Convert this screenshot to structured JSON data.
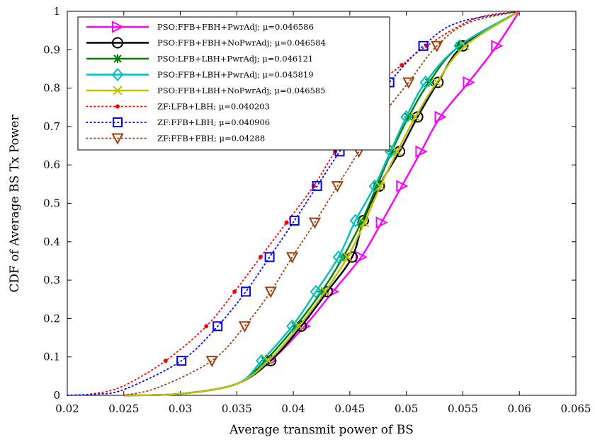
{
  "chart_data": {
    "type": "line",
    "xlabel": "Average transmit power of BS",
    "ylabel": "CDF of Average BS Tx Power",
    "xlim": [
      0.02,
      0.065
    ],
    "ylim": [
      0,
      1
    ],
    "xticks": [
      "0.02",
      "0.025",
      "0.03",
      "0.035",
      "0.04",
      "0.045",
      "0.05",
      "0.055",
      "0.06",
      "0.065"
    ],
    "yticks": [
      "0",
      "0.1",
      "0.2",
      "0.3",
      "0.4",
      "0.5",
      "0.6",
      "0.7",
      "0.8",
      "0.9",
      "1"
    ],
    "xtick_values": [
      0.02,
      0.025,
      0.03,
      0.035,
      0.04,
      0.045,
      0.05,
      0.055,
      0.06,
      0.065
    ],
    "ytick_values": [
      0,
      0.1,
      0.2,
      0.3,
      0.4,
      0.5,
      0.6,
      0.7,
      0.8,
      0.9,
      1
    ],
    "grid": false,
    "legend_position": "top-left",
    "series": [
      {
        "name": "PSO:FFB+FBH+PwrAdj; μ=0.046586",
        "color": "#ff00ff",
        "line": "solid",
        "marker": "triangle-right",
        "x": [
          0.025,
          0.03,
          0.035,
          0.038,
          0.041,
          0.0435,
          0.046,
          0.0478,
          0.0496,
          0.0513,
          0.053,
          0.0555,
          0.058,
          0.06
        ],
        "y": [
          0,
          0.004,
          0.03,
          0.09,
          0.18,
          0.27,
          0.36,
          0.45,
          0.545,
          0.635,
          0.725,
          0.815,
          0.91,
          1
        ]
      },
      {
        "name": "PSO:FFB+FBH+NoPwrAdj; μ=0.046584",
        "color": "#000000",
        "line": "solid",
        "marker": "circle",
        "x": [
          0.025,
          0.03,
          0.035,
          0.038,
          0.0407,
          0.043,
          0.0452,
          0.0462,
          0.0476,
          0.0494,
          0.051,
          0.0528,
          0.055,
          0.06
        ],
        "y": [
          0,
          0.004,
          0.03,
          0.09,
          0.18,
          0.27,
          0.36,
          0.455,
          0.545,
          0.635,
          0.725,
          0.815,
          0.91,
          1
        ]
      },
      {
        "name": "PSO:LFB+LBH+PwrAdj; μ=0.046121",
        "color": "#008000",
        "line": "solid",
        "marker": "asterisk",
        "x": [
          0.025,
          0.03,
          0.035,
          0.0375,
          0.0402,
          0.0425,
          0.0444,
          0.046,
          0.0474,
          0.0487,
          0.0502,
          0.052,
          0.0547,
          0.06
        ],
        "y": [
          0,
          0.004,
          0.03,
          0.09,
          0.18,
          0.27,
          0.36,
          0.45,
          0.545,
          0.635,
          0.725,
          0.815,
          0.91,
          1
        ]
      },
      {
        "name": "PSO:FFB+LBH+PwrAdj; μ=0.045819",
        "color": "#00c0c0",
        "line": "solid",
        "marker": "diamond",
        "x": [
          0.025,
          0.03,
          0.035,
          0.0372,
          0.0399,
          0.042,
          0.044,
          0.0455,
          0.0472,
          0.0486,
          0.05,
          0.0517,
          0.0547,
          0.06
        ],
        "y": [
          0,
          0.004,
          0.03,
          0.09,
          0.18,
          0.27,
          0.36,
          0.455,
          0.545,
          0.635,
          0.725,
          0.815,
          0.91,
          1
        ]
      },
      {
        "name": "PSO:FFB+LBH+NoPwrAdj; μ=0.046585",
        "color": "#c0c000",
        "line": "solid",
        "marker": "x",
        "x": [
          0.025,
          0.03,
          0.035,
          0.0378,
          0.0405,
          0.0428,
          0.0448,
          0.0463,
          0.0477,
          0.0492,
          0.0508,
          0.0527,
          0.0552,
          0.06
        ],
        "y": [
          0,
          0.004,
          0.03,
          0.09,
          0.18,
          0.27,
          0.36,
          0.45,
          0.545,
          0.635,
          0.725,
          0.815,
          0.91,
          1
        ]
      },
      {
        "name": "ZF:LFB+LBH; μ=0.040203",
        "color": "#ff0000",
        "line": "dotted",
        "marker": "dot",
        "x": [
          0.02,
          0.0225,
          0.025,
          0.0287,
          0.0323,
          0.0348,
          0.0371,
          0.0394,
          0.0418,
          0.0437,
          0.0458,
          0.0478,
          0.0496,
          0.0518,
          0.056,
          0.06
        ],
        "y": [
          0,
          0.005,
          0.025,
          0.09,
          0.18,
          0.27,
          0.36,
          0.45,
          0.545,
          0.635,
          0.725,
          0.815,
          0.86,
          0.91,
          0.98,
          1
        ]
      },
      {
        "name": "ZF:FFB+LBH; μ=0.040906",
        "color": "#0000ff",
        "line": "dotted",
        "marker": "square",
        "x": [
          0.02,
          0.0225,
          0.025,
          0.0301,
          0.0333,
          0.0358,
          0.0379,
          0.0401,
          0.0421,
          0.0441,
          0.0462,
          0.0485,
          0.0515,
          0.0545,
          0.06
        ],
        "y": [
          0,
          0.003,
          0.015,
          0.09,
          0.18,
          0.27,
          0.36,
          0.455,
          0.545,
          0.635,
          0.725,
          0.815,
          0.91,
          0.97,
          1
        ]
      },
      {
        "name": "ZF:FFB+FBH; μ=0.04288",
        "color": "#a0400a",
        "line": "dotted",
        "marker": "triangle-down",
        "x": [
          0.025,
          0.028,
          0.0328,
          0.0357,
          0.038,
          0.0399,
          0.0419,
          0.0439,
          0.0458,
          0.0478,
          0.0502,
          0.0527,
          0.0555,
          0.06
        ],
        "y": [
          0,
          0.02,
          0.09,
          0.18,
          0.27,
          0.36,
          0.45,
          0.545,
          0.635,
          0.725,
          0.815,
          0.91,
          0.97,
          1
        ]
      }
    ]
  }
}
